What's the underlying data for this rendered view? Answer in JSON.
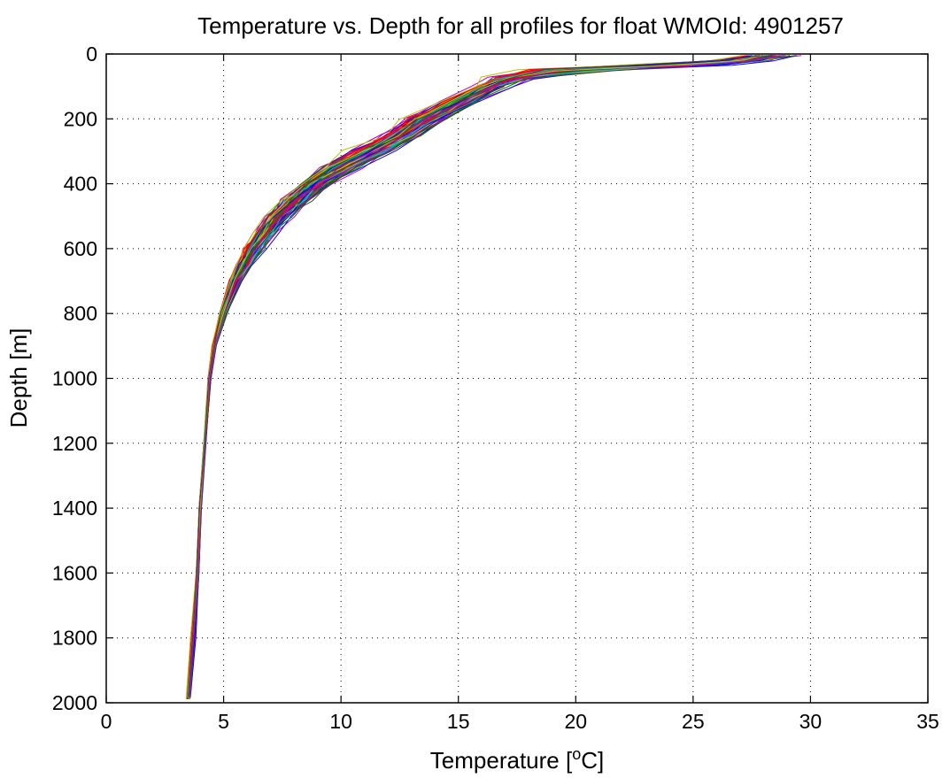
{
  "chart_data": {
    "type": "line",
    "title": "Temperature vs. Depth for all profiles for float WMOId: 4901257",
    "xlabel": "Temperature [",
    "xlabel_sup": "o",
    "xlabel_tail": "C]",
    "ylabel": "Depth [m]",
    "xlim": [
      0,
      35
    ],
    "ylim": [
      0,
      2000
    ],
    "y_reversed": true,
    "xticks": [
      0,
      5,
      10,
      15,
      20,
      25,
      30,
      35
    ],
    "xtick_labels": [
      "0",
      "5",
      "10",
      "15",
      "20",
      "25",
      "30",
      "35"
    ],
    "yticks": [
      0,
      200,
      400,
      600,
      800,
      1000,
      1200,
      1400,
      1600,
      1800,
      2000
    ],
    "ytick_labels": [
      "0",
      "200",
      "400",
      "600",
      "800",
      "1000",
      "1200",
      "1400",
      "1600",
      "1800",
      "2000"
    ],
    "grid": true,
    "legend": "none",
    "depth_levels": [
      5,
      20,
      35,
      50,
      75,
      100,
      150,
      200,
      250,
      300,
      350,
      400,
      450,
      500,
      550,
      600,
      650,
      700,
      800,
      900,
      1000,
      1100,
      1200,
      1400,
      1600,
      1800,
      1985
    ],
    "profile_colors": [
      "#0000ff",
      "#008000",
      "#ff0000",
      "#00bfbf",
      "#bf00bf",
      "#bfbf00",
      "#404040"
    ],
    "mean_profile": [
      28.3,
      27.2,
      24.0,
      19.8,
      17.2,
      16.4,
      15.0,
      13.7,
      12.6,
      11.3,
      10.0,
      8.9,
      8.1,
      7.4,
      6.8,
      6.3,
      5.9,
      5.5,
      5.0,
      4.6,
      4.4,
      4.3,
      4.2,
      4.0,
      3.9,
      3.7,
      3.5
    ],
    "spread": [
      1.4,
      1.4,
      2.5,
      2.2,
      1.0,
      0.9,
      0.9,
      1.0,
      1.0,
      1.0,
      0.9,
      0.85,
      0.75,
      0.65,
      0.55,
      0.5,
      0.4,
      0.3,
      0.2,
      0.1,
      0.07,
      0.06,
      0.05,
      0.05,
      0.07,
      0.1,
      0.08
    ],
    "profile_count": 140
  }
}
